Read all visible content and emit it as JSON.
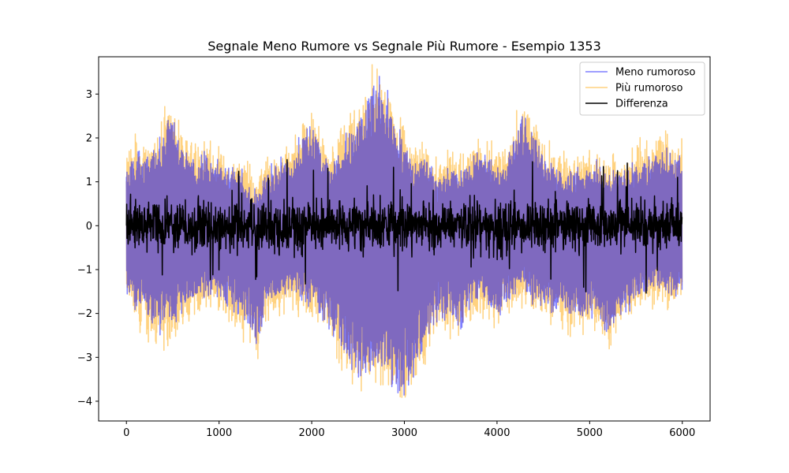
{
  "chart_data": {
    "type": "line",
    "title": "Segnale Meno Rumore vs Segnale Più Rumore - Esempio 1353",
    "xlabel": "",
    "ylabel": "",
    "xlim": [
      -300,
      6300
    ],
    "ylim": [
      -4.45,
      3.85
    ],
    "x_ticks": [
      0,
      1000,
      2000,
      3000,
      4000,
      5000,
      6000
    ],
    "y_ticks": [
      3,
      2,
      1,
      0,
      -1,
      -2,
      -3,
      -4
    ],
    "y_tick_labels": [
      "3",
      "2",
      "1",
      "0",
      "−1",
      "−2",
      "−3",
      "−4"
    ],
    "grid": false,
    "legend_position": "top-right",
    "n_points": 6000,
    "envelope": {
      "x": [
        0,
        120,
        250,
        350,
        450,
        550,
        650,
        800,
        950,
        1100,
        1250,
        1350,
        1420,
        1500,
        1650,
        1800,
        1900,
        2000,
        2100,
        2200,
        2300,
        2400,
        2500,
        2600,
        2700,
        2800,
        2900,
        3000,
        3100,
        3200,
        3300,
        3400,
        3500,
        3600,
        3700,
        3800,
        3900,
        4000,
        4100,
        4200,
        4280,
        4350,
        4450,
        4600,
        4750,
        4900,
        5050,
        5200,
        5300,
        5450,
        5600,
        5750,
        5900,
        6000
      ],
      "upper": [
        1.1,
        1.4,
        1.3,
        1.5,
        2.2,
        1.8,
        1.4,
        1.3,
        1.2,
        1.0,
        0.9,
        0.6,
        0.5,
        0.9,
        1.2,
        1.3,
        1.8,
        2.0,
        1.5,
        1.2,
        1.5,
        1.9,
        2.2,
        2.6,
        2.9,
        2.6,
        2.0,
        1.6,
        1.2,
        1.3,
        1.0,
        0.9,
        1.1,
        1.0,
        1.2,
        1.4,
        1.3,
        1.1,
        1.2,
        1.8,
        2.2,
        1.9,
        1.5,
        1.1,
        0.9,
        1.0,
        1.1,
        0.9,
        1.0,
        1.1,
        1.3,
        1.4,
        1.3,
        1.3
      ],
      "lower": [
        -1.3,
        -1.6,
        -1.9,
        -2.1,
        -2.0,
        -1.8,
        -1.6,
        -1.4,
        -1.3,
        -1.5,
        -1.8,
        -2.2,
        -2.5,
        -1.5,
        -1.4,
        -1.3,
        -1.4,
        -1.6,
        -1.8,
        -2.0,
        -2.4,
        -2.7,
        -3.0,
        -3.0,
        -2.8,
        -3.0,
        -3.3,
        -3.5,
        -3.0,
        -2.6,
        -2.0,
        -1.8,
        -1.8,
        -2.0,
        -1.7,
        -1.4,
        -1.6,
        -1.8,
        -1.5,
        -1.3,
        -1.2,
        -1.4,
        -1.5,
        -1.6,
        -1.7,
        -1.8,
        -1.7,
        -2.2,
        -1.8,
        -1.5,
        -1.3,
        -1.2,
        -1.3,
        -1.2
      ]
    },
    "series": [
      {
        "name": "Meno rumoroso",
        "color": "#0000ff",
        "alpha": 0.5,
        "noise_amplitude": 0.35
      },
      {
        "name": "Più rumoroso",
        "color": "#ffa500",
        "alpha": 0.5,
        "noise_amplitude": 0.6
      },
      {
        "name": "Differenza",
        "color": "#000000",
        "alpha": 1.0,
        "level": 0.0,
        "half_range": 0.75
      }
    ]
  }
}
